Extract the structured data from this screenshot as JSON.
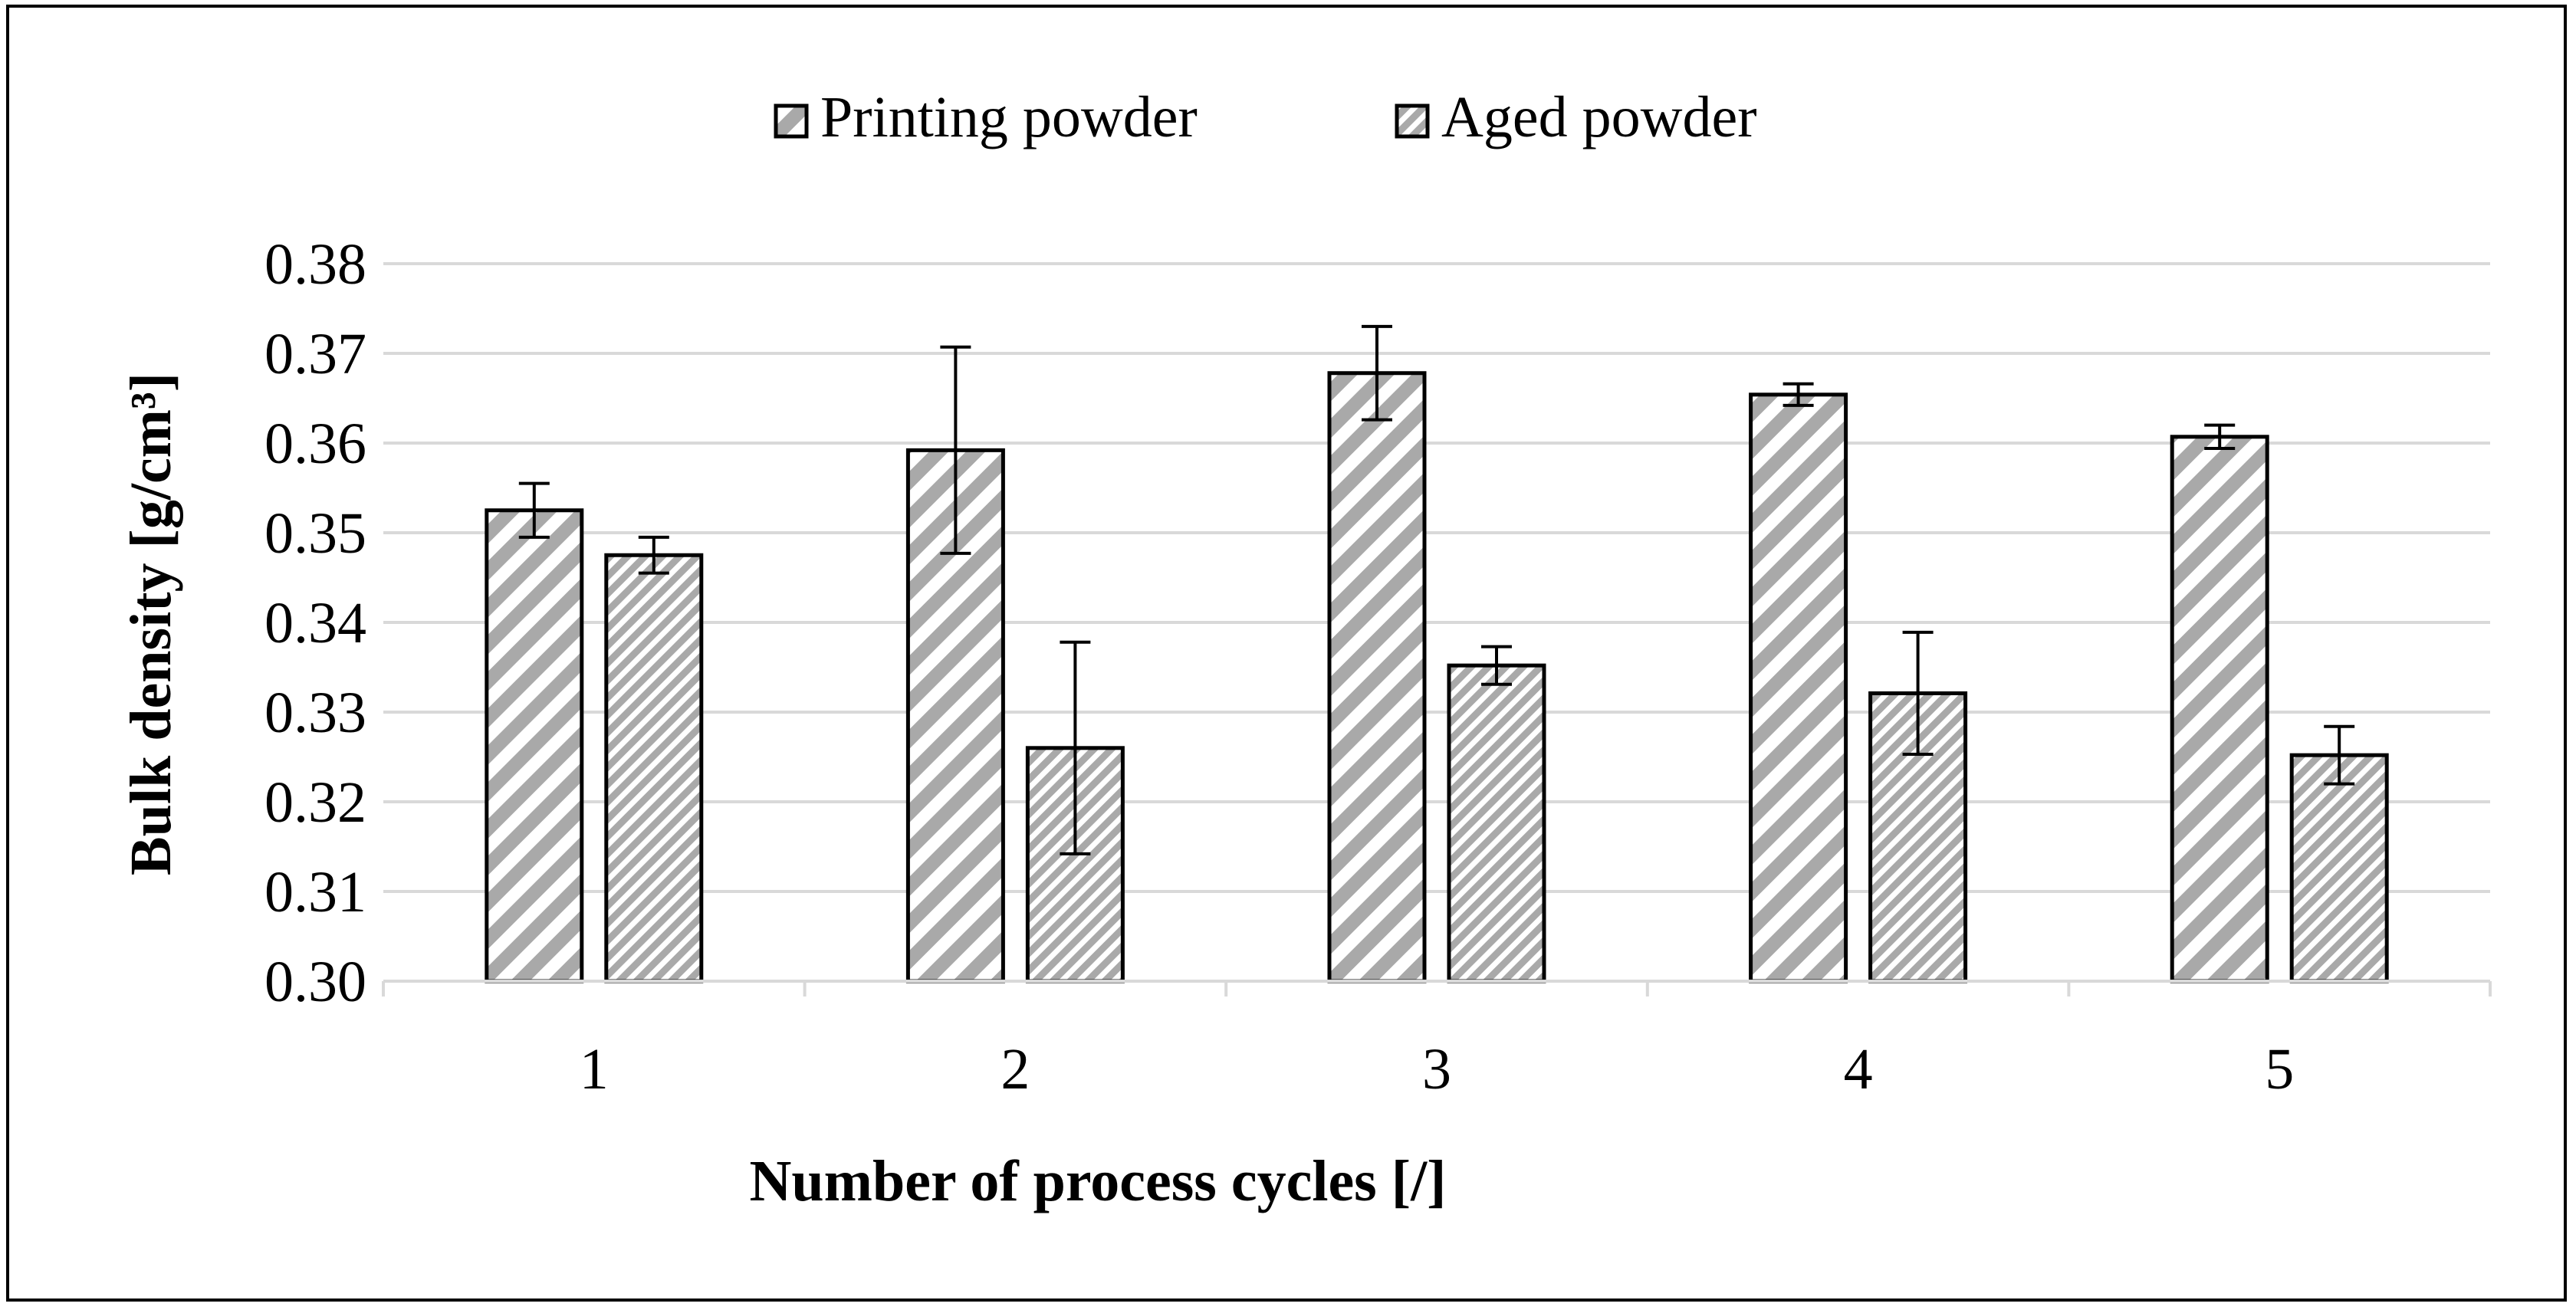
{
  "chart_data": {
    "type": "bar",
    "title": "",
    "xlabel": "Number of process cycles [/]",
    "ylabel": "Bulk density [g/cm³]",
    "categories": [
      "1",
      "2",
      "3",
      "4",
      "5"
    ],
    "ylim": [
      0.3,
      0.38
    ],
    "yticks": [
      0.3,
      0.31,
      0.32,
      0.33,
      0.34,
      0.35,
      0.36,
      0.37,
      0.38
    ],
    "ytick_labels": [
      "0.30",
      "0.31",
      "0.32",
      "0.33",
      "0.34",
      "0.35",
      "0.36",
      "0.37",
      "0.38"
    ],
    "grid": true,
    "legend_position": "top-center",
    "series": [
      {
        "name": "Printing powder",
        "values": [
          0.3525,
          0.3592,
          0.3678,
          0.3654,
          0.3607
        ],
        "errors": [
          0.003,
          0.0115,
          0.0052,
          0.0012,
          0.0013
        ],
        "pattern": "wide-diagonal-stripes"
      },
      {
        "name": "Aged powder",
        "values": [
          0.3475,
          0.326,
          0.3352,
          0.3321,
          0.3252
        ],
        "errors": [
          0.002,
          0.0118,
          0.0021,
          0.0068,
          0.0032
        ],
        "pattern": "narrow-diagonal-stripes"
      }
    ]
  }
}
